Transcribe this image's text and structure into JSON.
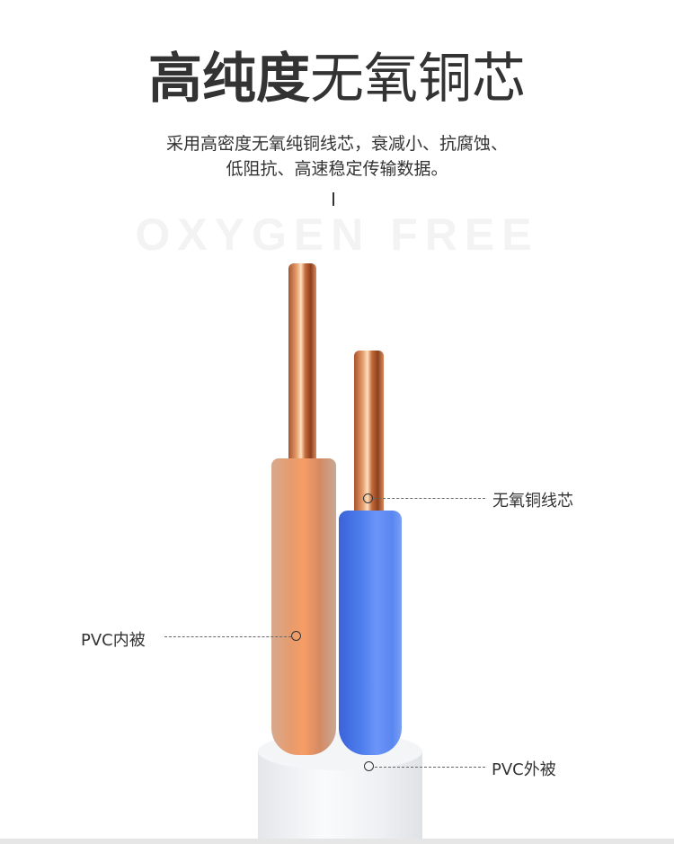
{
  "watermark": "OXYGEN FREE",
  "header": {
    "title_bold": "高纯度",
    "title_light": "无氧铜芯",
    "subtitle_line1": "采用高密度无氧纯铜线芯，衰减小、抗腐蚀、",
    "subtitle_line2": "低阻抗、高速稳定传输数据。"
  },
  "callouts": {
    "core": "无氧铜线芯",
    "inner_sheath": "PVC内被",
    "outer_sheath": "PVC外被"
  },
  "colors": {
    "copper": "#d98a5a",
    "orange_insulation": "#e89a6c",
    "blue_insulation": "#4f7ff0",
    "jacket": "#f1f2f4"
  }
}
